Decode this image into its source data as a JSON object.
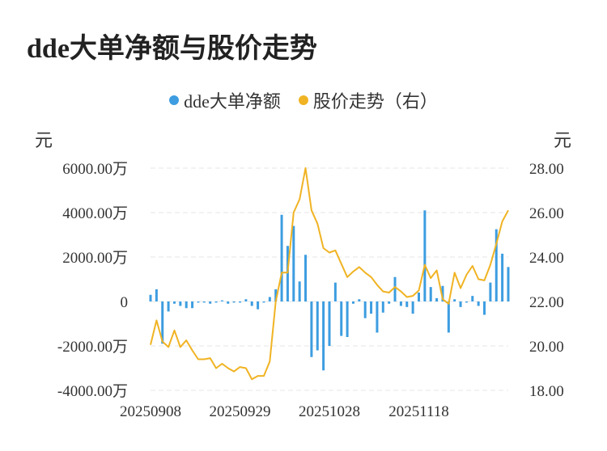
{
  "title": "dde大单净额与股价走势",
  "legend": [
    {
      "label": "dde大单净额",
      "color": "#3d9de0"
    },
    {
      "label": "股价走势（右）",
      "color": "#f0b323"
    }
  ],
  "axis": {
    "left_unit": "元",
    "right_unit": "元"
  },
  "chart_data": {
    "type": "bar+line",
    "title": "dde大单净额与股价走势",
    "left_axis": {
      "range": [
        -4000,
        6000
      ],
      "ticks": [
        "-4000.00万",
        "-2000.00万",
        "0",
        "2000.00万",
        "4000.00万",
        "6000.00万"
      ],
      "tick_values": [
        -4000,
        -2000,
        0,
        2000,
        4000,
        6000
      ]
    },
    "right_axis": {
      "range": [
        18,
        28
      ],
      "ticks": [
        "18.00",
        "20.00",
        "22.00",
        "24.00",
        "26.00",
        "28.00"
      ],
      "tick_values": [
        18,
        20,
        22,
        24,
        26,
        28
      ]
    },
    "x_ticks": [
      {
        "label": "20250908",
        "index": 0
      },
      {
        "label": "20250929",
        "index": 15
      },
      {
        "label": "20251028",
        "index": 30
      },
      {
        "label": "20251118",
        "index": 45
      }
    ],
    "grid": true,
    "legend_position": "top",
    "series": [
      {
        "name": "dde大单净额",
        "type": "bar",
        "axis": "left",
        "color": "#3d9de0",
        "values": [
          300,
          550,
          -1900,
          -450,
          -100,
          -200,
          -300,
          -300,
          -50,
          -50,
          -100,
          -50,
          50,
          -100,
          -50,
          -50,
          100,
          -200,
          -350,
          -50,
          200,
          550,
          3900,
          2500,
          3400,
          900,
          2100,
          -2500,
          -2200,
          -3100,
          -2000,
          850,
          -1550,
          -1600,
          -100,
          100,
          -750,
          -550,
          -1400,
          -500,
          -100,
          1100,
          -200,
          -250,
          -550,
          400,
          4100,
          650,
          150,
          700,
          -1400,
          100,
          -250,
          -50,
          250,
          -200,
          -600,
          850,
          3250,
          2150,
          1550
        ],
        "values_unit": "万"
      },
      {
        "name": "股价走势（右）",
        "type": "line",
        "axis": "right",
        "color": "#f0b323",
        "values": [
          20.05,
          21.15,
          20.2,
          19.95,
          20.7,
          19.95,
          20.25,
          19.8,
          19.4,
          19.4,
          19.45,
          19.0,
          19.2,
          19.0,
          18.85,
          19.05,
          19.0,
          18.5,
          18.65,
          18.65,
          19.3,
          22.0,
          23.3,
          23.3,
          26.0,
          26.6,
          28.0,
          26.1,
          25.5,
          24.4,
          24.2,
          24.3,
          23.7,
          23.1,
          23.35,
          23.55,
          23.3,
          23.1,
          22.75,
          22.45,
          22.4,
          22.65,
          22.45,
          22.2,
          22.25,
          22.5,
          23.65,
          23.05,
          23.4,
          22.1,
          21.9,
          23.3,
          22.6,
          23.2,
          23.6,
          23.0,
          22.95,
          23.65,
          24.6,
          25.6,
          26.1
        ]
      }
    ]
  }
}
